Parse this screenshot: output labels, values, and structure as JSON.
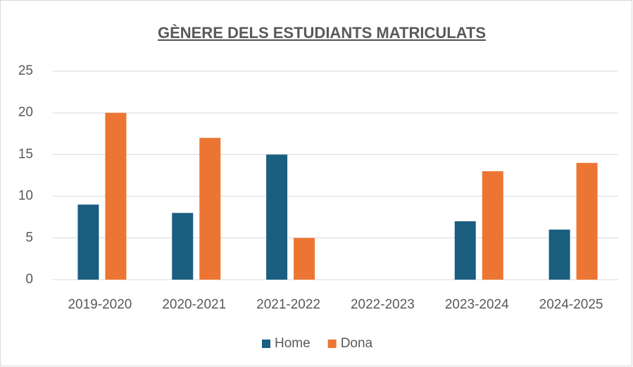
{
  "chart_data": {
    "type": "bar",
    "title": "GÈNERE DELS ESTUDIANTS MATRICULATS",
    "categories": [
      "2019-2020",
      "2020-2021",
      "2021-2022",
      "2022-2023",
      "2023-2024",
      "2024-2025"
    ],
    "series": [
      {
        "name": "Home",
        "color": "#1a5e80",
        "values": [
          9,
          8,
          15,
          null,
          7,
          6
        ]
      },
      {
        "name": "Dona",
        "color": "#ed7533",
        "values": [
          20,
          17,
          5,
          null,
          13,
          14
        ]
      }
    ],
    "ylim": [
      0,
      25
    ],
    "yticks": [
      0,
      5,
      10,
      15,
      20,
      25
    ],
    "grid": true,
    "legend": "bottom"
  }
}
